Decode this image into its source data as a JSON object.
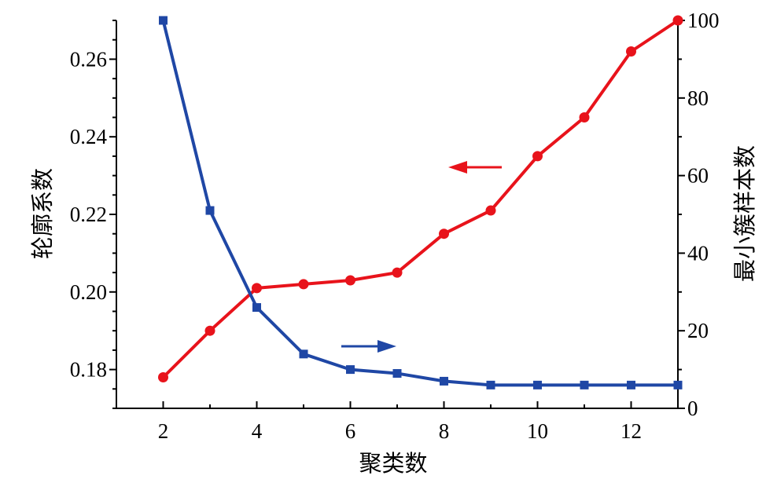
{
  "chart_data": {
    "type": "line",
    "title": "",
    "xlabel": "聚类数",
    "ylabel_left": "轮廓系数",
    "ylabel_right": "最小簇样本数",
    "x": [
      2,
      3,
      4,
      5,
      6,
      7,
      8,
      9,
      10,
      11,
      12,
      13
    ],
    "xlim": [
      1,
      13
    ],
    "x_ticks": [
      2,
      4,
      6,
      8,
      10,
      12
    ],
    "ylim_left": [
      0.17,
      0.27
    ],
    "y_ticks_left": [
      "0.18",
      "0.20",
      "0.22",
      "0.24",
      "0.26"
    ],
    "ylim_right": [
      0,
      100
    ],
    "y_ticks_right": [
      "0",
      "20",
      "40",
      "60",
      "80",
      "100"
    ],
    "grid": false,
    "legend": "none",
    "series": [
      {
        "axis": "left",
        "marker": "circle",
        "color": "#e8131b",
        "arrow_direction": "left",
        "values": [
          0.178,
          0.19,
          0.201,
          0.202,
          0.203,
          0.205,
          0.215,
          0.221,
          0.235,
          0.245,
          0.262,
          0.27
        ]
      },
      {
        "axis": "right",
        "marker": "square",
        "color": "#1f47a5",
        "arrow_direction": "right",
        "values": [
          100,
          51,
          26,
          14,
          10,
          9,
          7,
          6,
          6,
          6,
          6,
          6
        ]
      }
    ]
  }
}
